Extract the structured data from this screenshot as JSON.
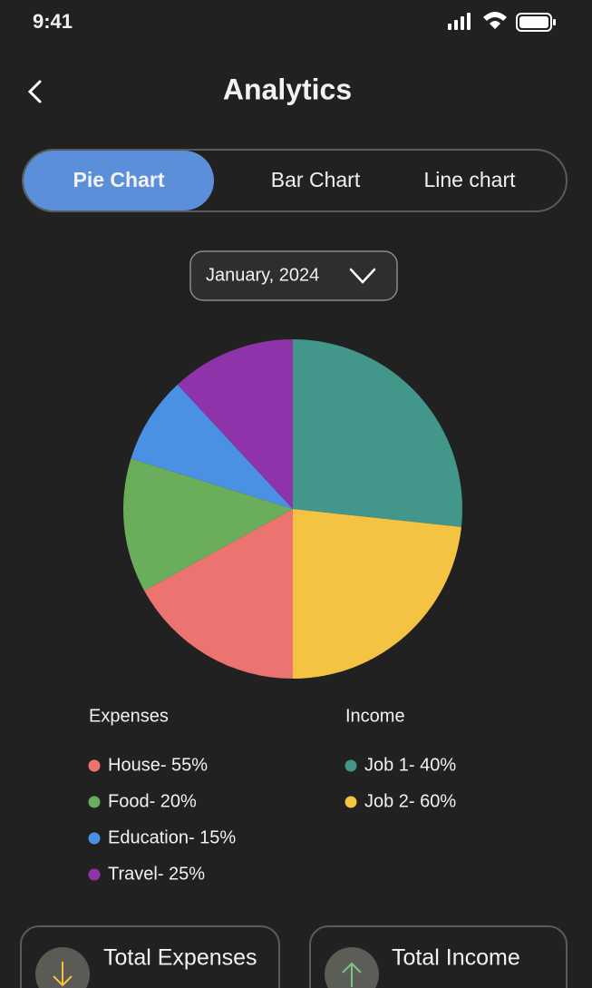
{
  "status_bar": {
    "time": "9:41"
  },
  "header": {
    "title": "Analytics"
  },
  "tabs": [
    "Pie Chart",
    "Bar Chart",
    "Line chart"
  ],
  "period": "January, 2024",
  "chart_data": {
    "type": "pie",
    "values": [
      26.7,
      23.3,
      17.0,
      12.8,
      8.3,
      11.9
    ],
    "colors": [
      "#43968a",
      "#f5c342",
      "#ec7470",
      "#6aad5b",
      "#4a90e3",
      "#8e33a9"
    ]
  },
  "legend": {
    "expenses": {
      "title": "Expenses",
      "items": [
        {
          "label": "House- 55%",
          "color": "#ec7470"
        },
        {
          "label": "Food- 20%",
          "color": "#6aad5b"
        },
        {
          "label": "Education- 15%",
          "color": "#4a90e3"
        },
        {
          "label": "Travel- 25%",
          "color": "#8e33a9"
        }
      ]
    },
    "income": {
      "title": "Income",
      "items": [
        {
          "label": "Job 1- 40%",
          "color": "#43968a"
        },
        {
          "label": "Job 2- 60%",
          "color": "#f5c342"
        }
      ]
    }
  },
  "cards": [
    "Total Expenses",
    "Total Income"
  ]
}
